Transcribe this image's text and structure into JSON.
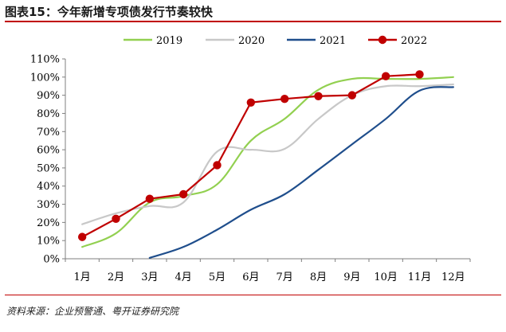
{
  "title": "图表15：今年新增专项债发行节奏较快",
  "source": "资料来源：企业预警通、粤开证券研究院",
  "chart_data": {
    "type": "line",
    "title": "图表15：今年新增专项债发行节奏较快",
    "xlabel": "",
    "ylabel": "",
    "categories": [
      "1月",
      "2月",
      "3月",
      "4月",
      "5月",
      "6月",
      "7月",
      "8月",
      "9月",
      "10月",
      "11月",
      "12月"
    ],
    "ylim": [
      0,
      110
    ],
    "yticks": [
      "0%",
      "10%",
      "20%",
      "30%",
      "40%",
      "50%",
      "60%",
      "70%",
      "80%",
      "90%",
      "100%",
      "110%"
    ],
    "grid": false,
    "legend_position": "top",
    "series": [
      {
        "name": "2019",
        "color": "#92d050",
        "markers": false,
        "values": [
          6.5,
          14,
          31,
          34.5,
          41,
          65,
          77,
          93,
          99,
          99,
          99,
          100
        ]
      },
      {
        "name": "2020",
        "color": "#c8c8c8",
        "markers": false,
        "values": [
          19,
          25,
          29,
          31,
          59,
          60,
          60.5,
          77,
          90,
          95,
          95,
          96
        ]
      },
      {
        "name": "2021",
        "color": "#1f4e8c",
        "markers": false,
        "values": [
          null,
          null,
          0.5,
          6.5,
          16,
          27,
          35.5,
          49,
          63,
          77,
          92.5,
          94.5
        ]
      },
      {
        "name": "2022",
        "color": "#c00000",
        "markers": true,
        "values": [
          12,
          22,
          33,
          35.5,
          51.5,
          86,
          88,
          89.5,
          90,
          100.5,
          101.5,
          null
        ]
      }
    ]
  }
}
